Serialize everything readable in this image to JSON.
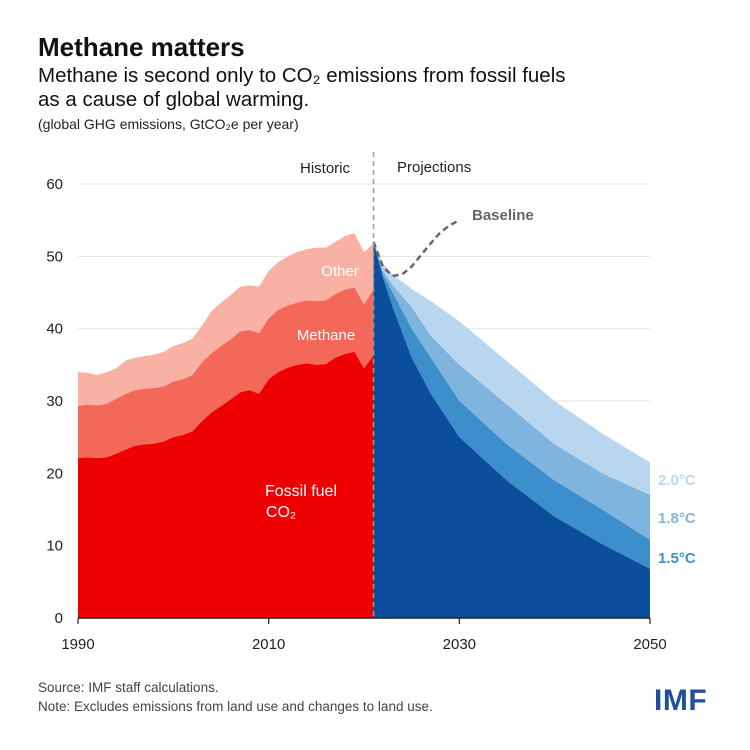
{
  "header": {
    "title": "Methane matters",
    "subtitle_line1": "Methane is second only to CO₂ emissions from fossil fuels",
    "subtitle_line2": "as a cause of global warming.",
    "units": "(global GHG emissions, GtCO₂e per year)"
  },
  "footer": {
    "source": "Source: IMF staff calculations.",
    "note": "Note: Excludes emissions from land use and changes to land use.",
    "logo": "IMF"
  },
  "colors": {
    "fossil": "#ee0000",
    "methane": "#f4685a",
    "other": "#f9b1a3",
    "proj_15": "#0b4f9c",
    "proj_18": "#3d8fcc",
    "proj_20": "#7fb4de",
    "proj_top": "#b8d6ef",
    "baseline": "#666666"
  },
  "chart_data": {
    "type": "area",
    "x_range": [
      1990,
      2050
    ],
    "ylim": [
      0,
      60
    ],
    "yticks": [
      0,
      10,
      20,
      30,
      40,
      50,
      60
    ],
    "xticks": [
      1990,
      2010,
      2030,
      2050
    ],
    "divider_year": 2021,
    "section_labels": {
      "historic": "Historic",
      "projections": "Projections"
    },
    "historic": {
      "years": [
        1990,
        1991,
        1992,
        1993,
        1994,
        1995,
        1996,
        1997,
        1998,
        1999,
        2000,
        2001,
        2002,
        2003,
        2004,
        2005,
        2006,
        2007,
        2008,
        2009,
        2010,
        2011,
        2012,
        2013,
        2014,
        2015,
        2016,
        2017,
        2018,
        2019,
        2020,
        2021
      ],
      "fossil_co2": [
        22.1,
        22.2,
        22.1,
        22.2,
        22.7,
        23.3,
        23.8,
        24.0,
        24.1,
        24.4,
        25.0,
        25.3,
        25.8,
        27.2,
        28.4,
        29.3,
        30.2,
        31.2,
        31.5,
        31.0,
        33.0,
        34.0,
        34.6,
        35.0,
        35.2,
        35.0,
        35.1,
        36.0,
        36.5,
        36.8,
        34.5,
        36.3
      ],
      "methane_top": [
        29.3,
        29.5,
        29.4,
        29.6,
        30.3,
        31.0,
        31.5,
        31.7,
        31.8,
        32.0,
        32.7,
        33.0,
        33.6,
        35.3,
        36.6,
        37.6,
        38.5,
        39.6,
        39.8,
        39.4,
        41.4,
        42.6,
        43.2,
        43.6,
        43.9,
        43.8,
        43.9,
        44.8,
        45.4,
        45.7,
        43.3,
        45.5
      ],
      "other_top": [
        34.0,
        33.9,
        33.6,
        34.0,
        34.5,
        35.6,
        36.0,
        36.2,
        36.4,
        36.8,
        37.6,
        38.0,
        38.6,
        40.4,
        42.4,
        43.6,
        44.6,
        45.8,
        46.0,
        45.8,
        48.0,
        49.2,
        50.0,
        50.6,
        51.0,
        51.2,
        51.2,
        52.0,
        52.8,
        53.2,
        50.6,
        51.8
      ]
    },
    "labels": {
      "other": "Other",
      "methane": "Methane",
      "fossil_line1": "Fossil fuel",
      "fossil_line2": "CO₂"
    },
    "projections": {
      "years": [
        2021,
        2022,
        2023,
        2025,
        2027,
        2030,
        2035,
        2040,
        2045,
        2050
      ],
      "pathways": [
        {
          "name": "1.5°C",
          "values": [
            52.0,
            47.0,
            43.0,
            36.0,
            31.0,
            25.0,
            19.0,
            14.0,
            10.2,
            6.8
          ]
        },
        {
          "name": "1.8°C",
          "values": [
            52.0,
            47.5,
            45.0,
            40.0,
            36.0,
            30.0,
            24.0,
            19.0,
            15.0,
            10.8
          ]
        },
        {
          "name": "2.0°C",
          "values": [
            52.0,
            48.0,
            46.0,
            43.0,
            39.0,
            35.0,
            29.5,
            24.0,
            20.0,
            17.0
          ]
        },
        {
          "name": "",
          "values": [
            52.0,
            49.0,
            47.5,
            45.5,
            43.8,
            41.0,
            35.5,
            30.0,
            25.5,
            21.5
          ]
        }
      ],
      "baseline": {
        "name": "Baseline",
        "years": [
          2021,
          2022,
          2023,
          2024,
          2025,
          2026,
          2027,
          2028,
          2029,
          2030
        ],
        "values": [
          52.0,
          48.5,
          47.3,
          47.5,
          48.6,
          50.2,
          51.8,
          53.3,
          54.3,
          55.0
        ]
      }
    }
  }
}
